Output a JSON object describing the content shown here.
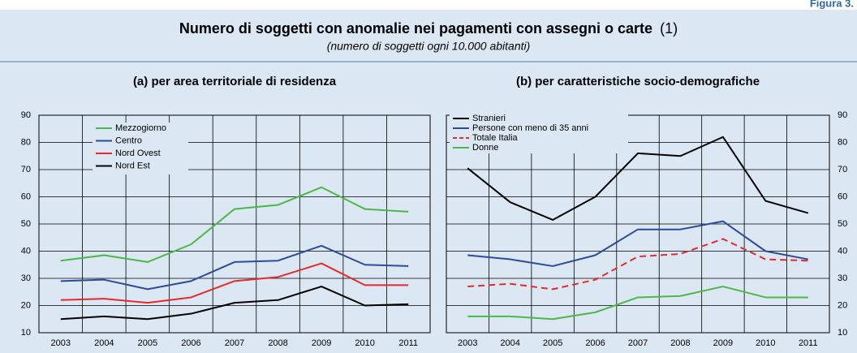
{
  "header": {
    "figure_label": "Figura 3.",
    "title": "Numero di soggetti con anomalie nei pagamenti con assegni o carte",
    "note_ref": "(1)",
    "subtitle": "(numero di soggetti ogni 10.000 abitanti)"
  },
  "chart_data": [
    {
      "type": "line",
      "title": "(a) per area territoriale di residenza",
      "axis_side": "left",
      "legend": "upper-left",
      "grid": true,
      "categories": [
        "2003",
        "2004",
        "2005",
        "2006",
        "2007",
        "2008",
        "2009",
        "2010",
        "2011"
      ],
      "ylim": [
        10,
        90
      ],
      "yticks": [
        10,
        20,
        30,
        40,
        50,
        60,
        70,
        80,
        90
      ],
      "series": [
        {
          "name": "Mezzogiorno",
          "color": "#4cb848",
          "dashed": false,
          "values": [
            36.5,
            38.5,
            36,
            42.5,
            55.5,
            57,
            63.5,
            55.5,
            54.5
          ]
        },
        {
          "name": "Centro",
          "color": "#2e4a9a",
          "dashed": false,
          "values": [
            29,
            29.5,
            26,
            29,
            36,
            36.5,
            42,
            35,
            34.5
          ]
        },
        {
          "name": "Nord Ovest",
          "color": "#e32b2b",
          "dashed": false,
          "values": [
            22,
            22.5,
            21,
            23,
            29,
            30.5,
            35.5,
            27.5,
            27.5
          ]
        },
        {
          "name": "Nord Est",
          "color": "#000000",
          "dashed": false,
          "values": [
            15,
            16,
            15,
            17,
            21,
            22,
            27,
            20,
            20.5
          ]
        }
      ]
    },
    {
      "type": "line",
      "title": "(b) per caratteristiche socio-demografiche",
      "axis_side": "right",
      "legend": "upper-left",
      "grid": true,
      "categories": [
        "2003",
        "2004",
        "2005",
        "2006",
        "2007",
        "2008",
        "2009",
        "2010",
        "2011"
      ],
      "ylim": [
        10,
        90
      ],
      "yticks": [
        10,
        20,
        30,
        40,
        50,
        60,
        70,
        80,
        90
      ],
      "series": [
        {
          "name": "Stranieri",
          "color": "#000000",
          "dashed": false,
          "values": [
            70.5,
            58,
            51.5,
            60,
            76,
            75,
            82,
            58.5,
            54
          ]
        },
        {
          "name": "Persone con meno di 35 anni",
          "color": "#2e4a9a",
          "dashed": false,
          "values": [
            38.5,
            37,
            34.5,
            38.5,
            48,
            48,
            51,
            40,
            37
          ]
        },
        {
          "name": "Totale Italia",
          "color": "#e32b2b",
          "dashed": true,
          "values": [
            27,
            28,
            26,
            29.5,
            38,
            39,
            44.5,
            37,
            36.5
          ]
        },
        {
          "name": "Donne",
          "color": "#4cb848",
          "dashed": false,
          "values": [
            16,
            16,
            15,
            17.5,
            23,
            23.5,
            27,
            23,
            23
          ]
        }
      ]
    }
  ]
}
